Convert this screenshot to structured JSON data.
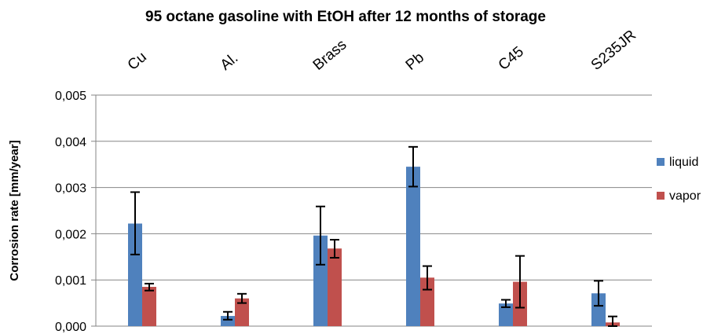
{
  "chart_data": {
    "type": "bar",
    "title": "95 octane gasoline with EtOH after 12 months of storage",
    "ylabel": "Corrosion rate [mm/year]",
    "xlabel": "",
    "categories": [
      "Cu",
      "Al.",
      "Brass",
      "Pb",
      "C45",
      "S235JR"
    ],
    "ylim": [
      0,
      0.005
    ],
    "yticks": [
      "0,000",
      "0,001",
      "0,002",
      "0,003",
      "0,004",
      "0,005"
    ],
    "ytick_values": [
      0,
      0.001,
      0.002,
      0.003,
      0.004,
      0.005
    ],
    "grid": true,
    "legend_position": "right",
    "series": [
      {
        "name": "liquid",
        "color": "#4f81bd",
        "values": [
          0.00222,
          0.00022,
          0.00196,
          0.00345,
          0.00049,
          0.00071
        ],
        "error_low": [
          0.00155,
          0.00014,
          0.00133,
          0.00302,
          0.00041,
          0.00044
        ],
        "error_high": [
          0.0029,
          0.00031,
          0.00259,
          0.00388,
          0.00057,
          0.00098
        ]
      },
      {
        "name": "vapor",
        "color": "#c0504d",
        "values": [
          0.00085,
          0.0006,
          0.00168,
          0.00105,
          0.00096,
          8e-05
        ],
        "error_low": [
          0.00077,
          0.0005,
          0.00148,
          0.00079,
          0.0004,
          0.0
        ],
        "error_high": [
          0.00092,
          0.0007,
          0.00187,
          0.0013,
          0.00152,
          0.00021
        ]
      }
    ]
  }
}
